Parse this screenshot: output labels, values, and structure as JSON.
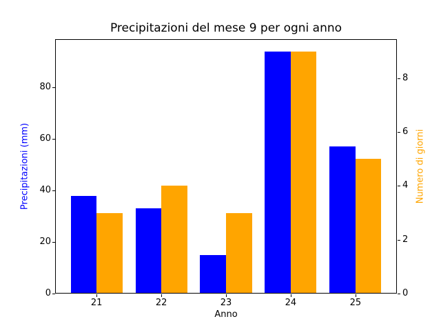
{
  "chart_data": {
    "type": "bar",
    "title": "Precipitazioni del mese 9 per ogni anno",
    "xlabel": "Anno",
    "ylabel_left": "Precipitazioni (mm)",
    "ylabel_right": "Numero di giorni",
    "categories": [
      "21",
      "22",
      "23",
      "24",
      "25"
    ],
    "series": [
      {
        "name": "Precipitazioni (mm)",
        "axis": "left",
        "color": "#0000ff",
        "values": [
          38,
          33,
          15,
          94,
          57
        ]
      },
      {
        "name": "Numero di giorni",
        "axis": "right",
        "color": "#ffa500",
        "values": [
          3,
          4,
          3,
          9,
          5
        ]
      }
    ],
    "left_axis": {
      "ticks": [
        0,
        20,
        40,
        60,
        80
      ],
      "lim": [
        0,
        98.7
      ],
      "label_color": "#0000ff"
    },
    "right_axis": {
      "ticks": [
        0,
        2,
        4,
        6,
        8
      ],
      "lim": [
        0,
        9.45
      ],
      "label_color": "#ffa500"
    },
    "x_tick_labels": [
      "21",
      "22",
      "23",
      "24",
      "25"
    ],
    "grid": false,
    "legend": "none",
    "bar_width_data_units": 0.4,
    "xlim": [
      -0.64,
      4.64
    ]
  }
}
